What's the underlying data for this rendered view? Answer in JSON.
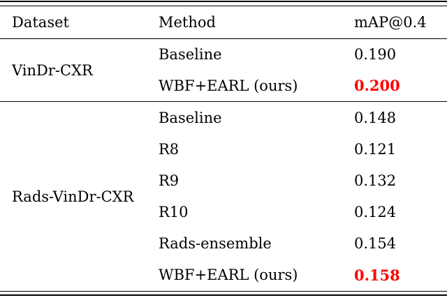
{
  "colors": {
    "text": "#000000",
    "rule": "#000000",
    "highlight": "#ff0000"
  },
  "table": {
    "columns": [
      "Dataset",
      "Method",
      "mAP@0.4"
    ],
    "sections": [
      {
        "dataset": "VinDr-CXR",
        "rows": [
          {
            "method": "Baseline",
            "map": "0.190",
            "highlight": false
          },
          {
            "method": "WBF+EARL (ours)",
            "map": "0.200",
            "highlight": true
          }
        ]
      },
      {
        "dataset": "Rads-VinDr-CXR",
        "rows": [
          {
            "method": "Baseline",
            "map": "0.148",
            "highlight": false
          },
          {
            "method": "R8",
            "map": "0.121",
            "highlight": false
          },
          {
            "method": "R9",
            "map": "0.132",
            "highlight": false
          },
          {
            "method": "R10",
            "map": "0.124",
            "highlight": false
          },
          {
            "method": "Rads-ensemble",
            "map": "0.154",
            "highlight": false
          },
          {
            "method": "WBF+EARL (ours)",
            "map": "0.158",
            "highlight": true
          }
        ]
      }
    ]
  }
}
